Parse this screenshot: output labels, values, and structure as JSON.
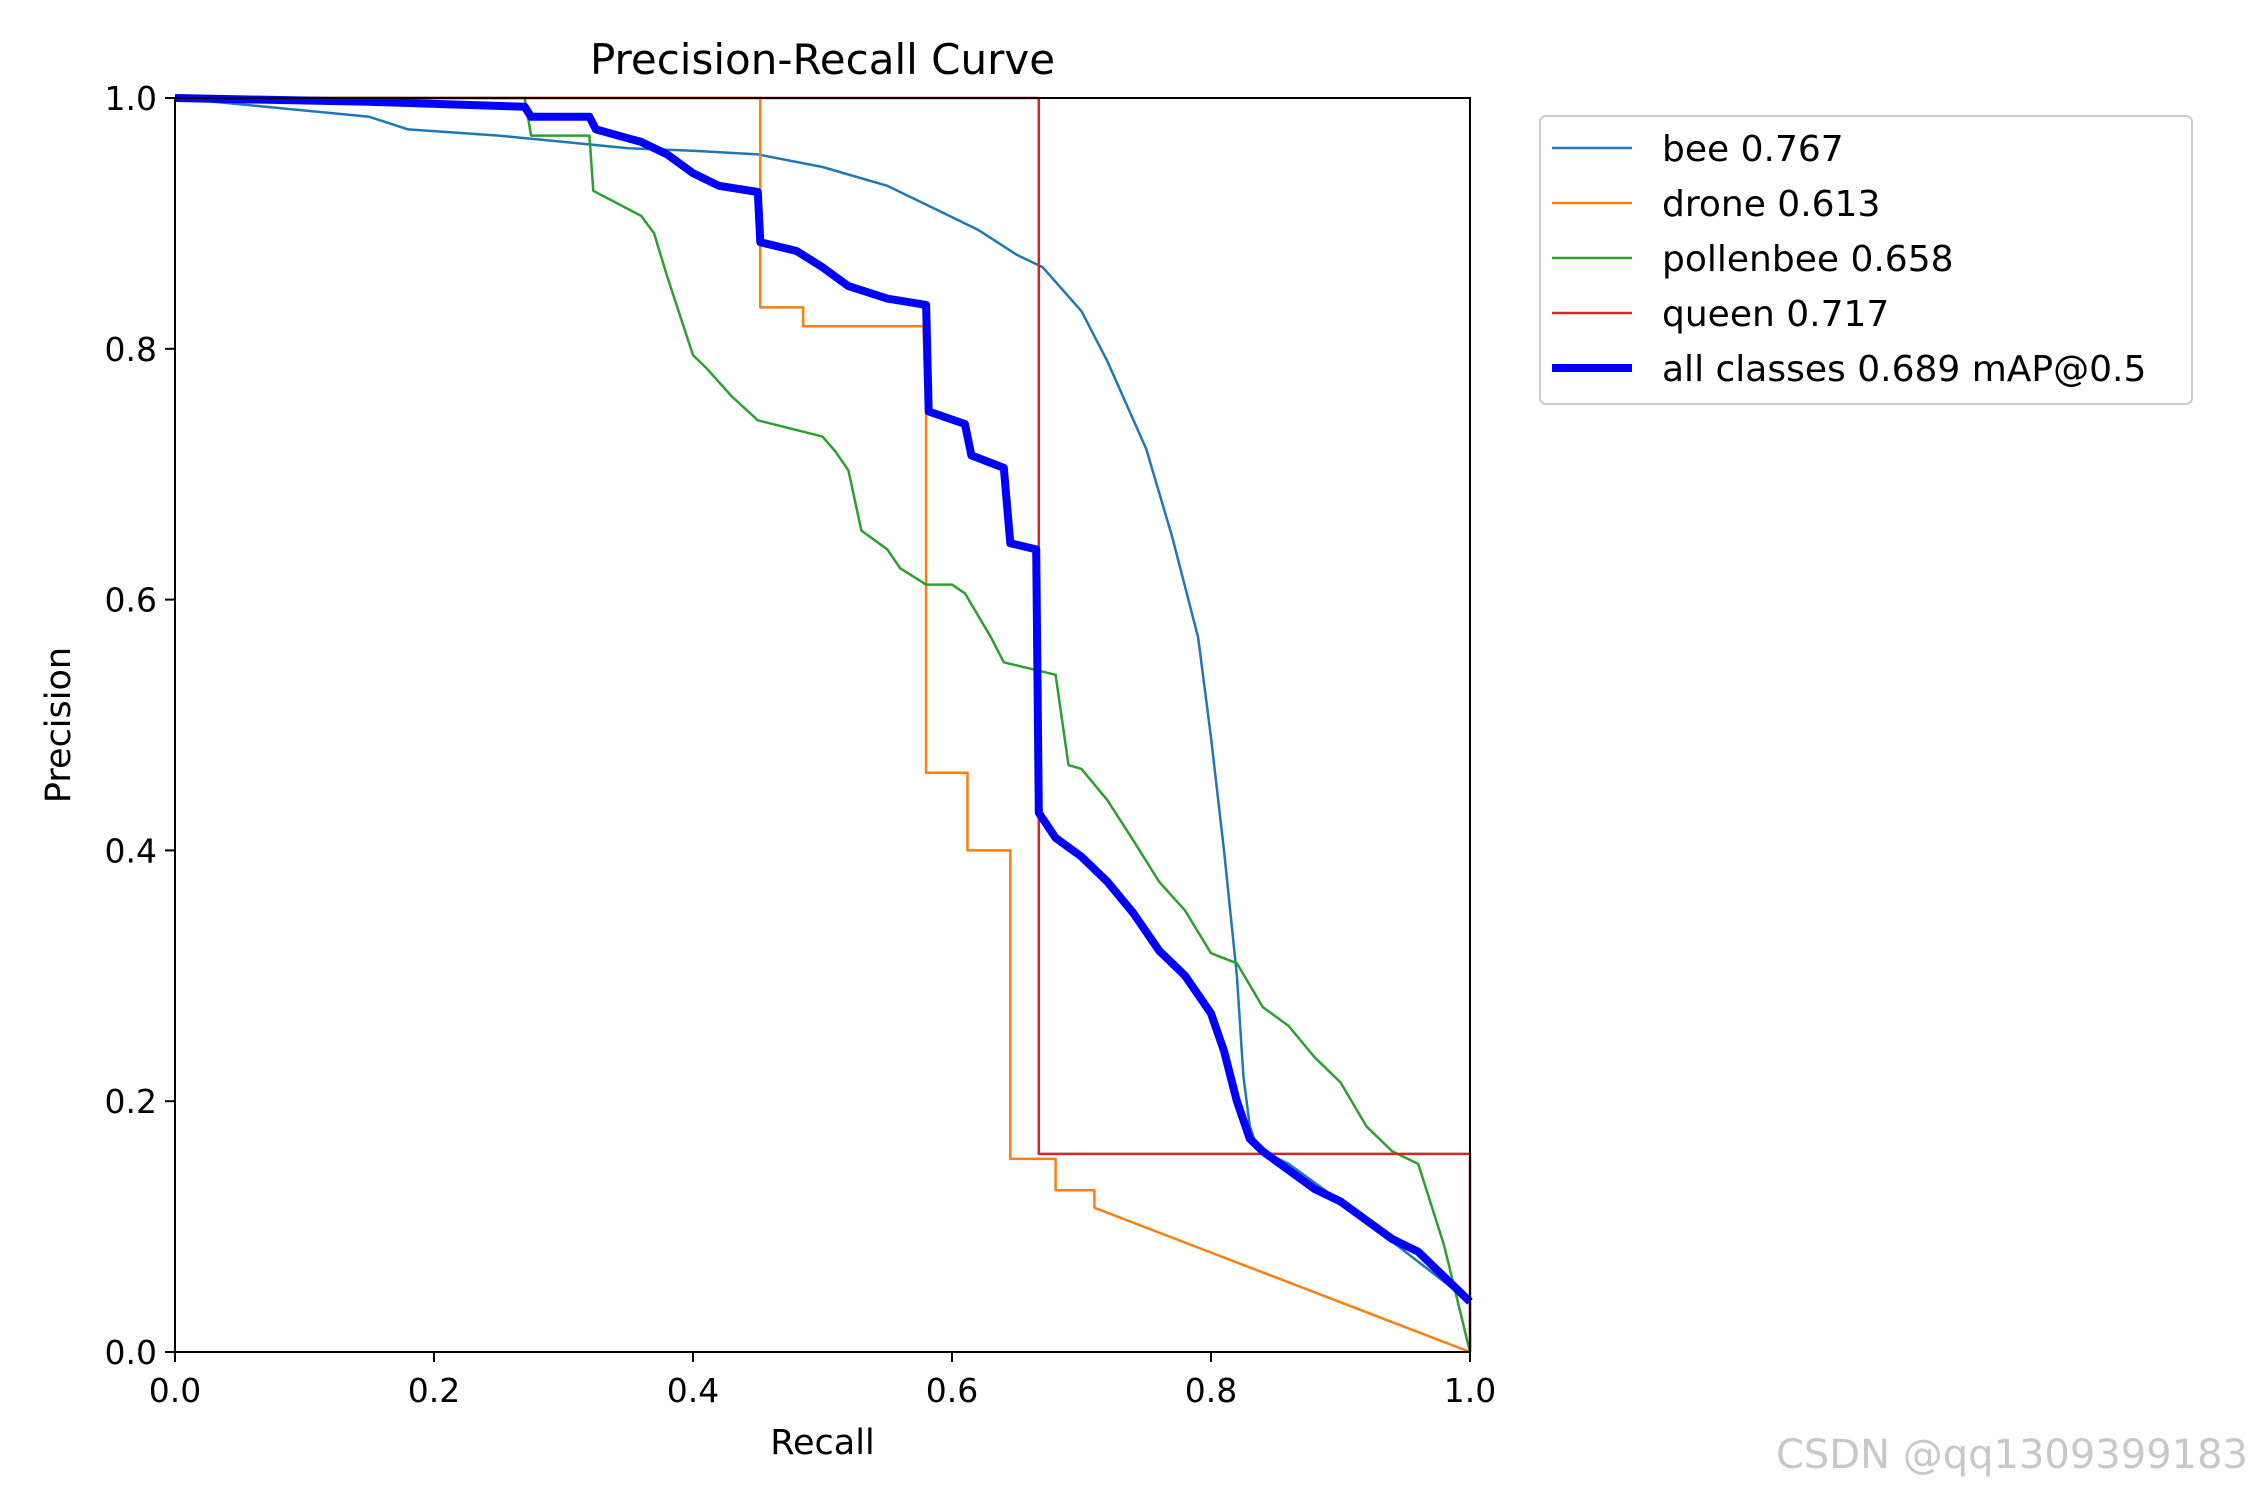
{
  "chart_data": {
    "type": "line",
    "title": "Precision-Recall Curve",
    "xlabel": "Recall",
    "ylabel": "Precision",
    "xlim": [
      0,
      1
    ],
    "ylim": [
      0,
      1
    ],
    "xticks": [
      "0.0",
      "0.2",
      "0.4",
      "0.6",
      "0.8",
      "1.0"
    ],
    "yticks": [
      "0.0",
      "0.2",
      "0.4",
      "0.6",
      "0.8",
      "1.0"
    ],
    "legend_position": "outside-top-right",
    "series": [
      {
        "name": "bee 0.767",
        "color": "#1f77b4",
        "x": [
          0,
          0.05,
          0.1,
          0.15,
          0.18,
          0.25,
          0.3,
          0.35,
          0.4,
          0.45,
          0.5,
          0.55,
          0.6,
          0.62,
          0.65,
          0.67,
          0.7,
          0.72,
          0.75,
          0.77,
          0.79,
          0.8,
          0.81,
          0.82,
          0.825,
          0.83,
          0.835,
          0.84,
          0.86,
          0.9,
          0.95,
          1.0,
          1.0
        ],
        "y": [
          1.0,
          0.995,
          0.99,
          0.985,
          0.975,
          0.97,
          0.965,
          0.96,
          0.958,
          0.955,
          0.945,
          0.93,
          0.905,
          0.895,
          0.875,
          0.865,
          0.83,
          0.79,
          0.72,
          0.65,
          0.57,
          0.49,
          0.4,
          0.3,
          0.22,
          0.18,
          0.165,
          0.16,
          0.15,
          0.12,
          0.08,
          0.04,
          0.0
        ]
      },
      {
        "name": "drone 0.613",
        "color": "#ff7f0e",
        "x": [
          0,
          0.45,
          0.452,
          0.452,
          0.485,
          0.485,
          0.578,
          0.58,
          0.58,
          0.612,
          0.612,
          0.645,
          0.645,
          0.68,
          0.68,
          0.71,
          0.71,
          1.0
        ],
        "y": [
          1.0,
          1.0,
          1.0,
          0.833,
          0.833,
          0.818,
          0.818,
          0.75,
          0.462,
          0.462,
          0.4,
          0.4,
          0.154,
          0.154,
          0.129,
          0.129,
          0.115,
          0.0
        ]
      },
      {
        "name": "pollenbee 0.658",
        "color": "#2ca02c",
        "x": [
          0,
          0.27,
          0.275,
          0.32,
          0.323,
          0.36,
          0.37,
          0.38,
          0.4,
          0.41,
          0.43,
          0.45,
          0.5,
          0.51,
          0.52,
          0.53,
          0.55,
          0.56,
          0.58,
          0.6,
          0.61,
          0.63,
          0.64,
          0.68,
          0.69,
          0.7,
          0.72,
          0.74,
          0.76,
          0.78,
          0.8,
          0.82,
          0.84,
          0.86,
          0.88,
          0.9,
          0.92,
          0.94,
          0.96,
          0.98,
          1.0
        ],
        "y": [
          1.0,
          1.0,
          0.97,
          0.97,
          0.926,
          0.906,
          0.892,
          0.858,
          0.795,
          0.785,
          0.762,
          0.743,
          0.73,
          0.718,
          0.703,
          0.655,
          0.64,
          0.625,
          0.612,
          0.612,
          0.605,
          0.57,
          0.55,
          0.54,
          0.468,
          0.465,
          0.44,
          0.408,
          0.375,
          0.352,
          0.318,
          0.31,
          0.275,
          0.26,
          0.235,
          0.215,
          0.18,
          0.16,
          0.15,
          0.085,
          0.0
        ]
      },
      {
        "name": "queen 0.717",
        "color": "#d62728",
        "x": [
          0,
          0.667,
          0.667,
          0.667,
          1.0,
          1.0
        ],
        "y": [
          1.0,
          1.0,
          1.0,
          0.158,
          0.158,
          0.0
        ]
      },
      {
        "name": "all classes 0.689 mAP@0.5",
        "color": "#0000ff",
        "bold": true,
        "x": [
          0,
          0.15,
          0.27,
          0.275,
          0.32,
          0.325,
          0.36,
          0.38,
          0.4,
          0.42,
          0.45,
          0.452,
          0.48,
          0.5,
          0.52,
          0.55,
          0.58,
          0.582,
          0.61,
          0.615,
          0.64,
          0.645,
          0.665,
          0.667,
          0.68,
          0.7,
          0.72,
          0.74,
          0.76,
          0.78,
          0.8,
          0.81,
          0.82,
          0.83,
          0.84,
          0.86,
          0.88,
          0.9,
          0.92,
          0.94,
          0.96,
          0.98,
          1.0
        ],
        "y": [
          1.0,
          0.997,
          0.993,
          0.985,
          0.985,
          0.975,
          0.965,
          0.955,
          0.94,
          0.93,
          0.925,
          0.885,
          0.878,
          0.865,
          0.85,
          0.84,
          0.835,
          0.75,
          0.74,
          0.715,
          0.705,
          0.645,
          0.64,
          0.43,
          0.41,
          0.395,
          0.375,
          0.35,
          0.32,
          0.3,
          0.27,
          0.24,
          0.2,
          0.17,
          0.16,
          0.145,
          0.13,
          0.12,
          0.105,
          0.09,
          0.08,
          0.06,
          0.04
        ]
      }
    ]
  },
  "watermark": "CSDN @qq1309399183"
}
